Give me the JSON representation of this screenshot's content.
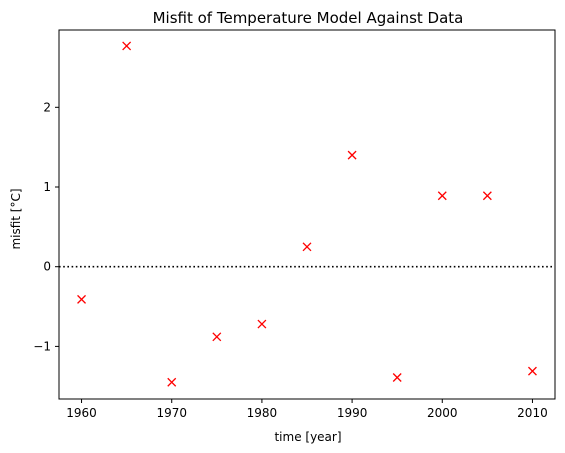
{
  "colors": {
    "marker": "#ff0000",
    "axis": "#000000",
    "background": "#ffffff",
    "reference_line": "#000000"
  },
  "chart_data": {
    "type": "scatter",
    "title": "Misfit of Temperature Model Against Data",
    "xlabel": "time [year]",
    "ylabel": "misfit [°C]",
    "marker": "x",
    "series": [
      {
        "name": "misfit",
        "x": [
          1960,
          1965,
          1970,
          1975,
          1980,
          1985,
          1990,
          1995,
          2000,
          2005,
          2010
        ],
        "y": [
          -0.41,
          2.77,
          -1.45,
          -0.88,
          -0.72,
          0.25,
          1.4,
          -1.39,
          0.89,
          0.89,
          -1.31
        ]
      }
    ],
    "xlim": [
      1957.5,
      2012.5
    ],
    "ylim": [
      -1.66,
      2.97
    ],
    "xticks": [
      1960,
      1970,
      1980,
      1990,
      2000,
      2010
    ],
    "xtick_labels": [
      "1960",
      "1970",
      "1980",
      "1990",
      "2000",
      "2010"
    ],
    "yticks": [
      -1,
      0,
      1,
      2
    ],
    "ytick_labels": [
      "−1",
      "0",
      "1",
      "2"
    ],
    "reference_line": {
      "y": 0,
      "style": "dotted"
    },
    "grid": false,
    "legend": "none"
  }
}
